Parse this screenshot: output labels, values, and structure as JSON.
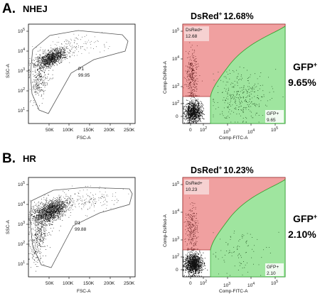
{
  "panels": [
    {
      "letter": "A.",
      "name": "NHEJ",
      "scatter": {
        "ylabel": "SSC-A",
        "xlabel": "FSC-A",
        "x_ticks": [
          "50K",
          "100K",
          "150K",
          "200K",
          "250K"
        ],
        "y_ticks": [
          {
            "base": "10",
            "exp": "1"
          },
          {
            "base": "10",
            "exp": "2"
          },
          {
            "base": "10",
            "exp": "3"
          },
          {
            "base": "10",
            "exp": "4"
          },
          {
            "base": "10",
            "exp": "5"
          }
        ],
        "gate_name": "P1",
        "gate_pct": "99.95"
      },
      "quadrant": {
        "title": "DsRed",
        "title_sup": "+",
        "title_pct": "12.68%",
        "ylabel": "Comp-DsRed-A",
        "xlabel": "Comp-FITC-A",
        "x_ticks": [
          {
            "base": "0",
            "exp": ""
          },
          {
            "base": "10",
            "exp": "2"
          },
          {
            "base": "10",
            "exp": "3"
          },
          {
            "base": "10",
            "exp": "4"
          },
          {
            "base": "10",
            "exp": "5"
          }
        ],
        "y_ticks": [
          {
            "base": "0",
            "exp": ""
          },
          {
            "base": "10",
            "exp": "2"
          },
          {
            "base": "10",
            "exp": "3"
          },
          {
            "base": "10",
            "exp": "4"
          },
          {
            "base": "10",
            "exp": "5"
          }
        ],
        "dsred_label": "DsRed+",
        "dsred_pct": "12.68",
        "gfp_label": "GFP+",
        "gfp_pct": "9.65",
        "side_label": "GFP",
        "side_sup": "+",
        "side_pct": "9.65%"
      }
    },
    {
      "letter": "B.",
      "name": "HR",
      "scatter": {
        "ylabel": "SSC-A",
        "xlabel": "FSC-A",
        "x_ticks": [
          "50K",
          "100K",
          "150K",
          "200K",
          "250K"
        ],
        "y_ticks": [
          {
            "base": "10",
            "exp": "1"
          },
          {
            "base": "10",
            "exp": "2"
          },
          {
            "base": "10",
            "exp": "3"
          },
          {
            "base": "10",
            "exp": "4"
          },
          {
            "base": "10",
            "exp": "5"
          }
        ],
        "gate_name": "P1",
        "gate_pct": "99.88"
      },
      "quadrant": {
        "title": "DsRed",
        "title_sup": "+",
        "title_pct": "10.23%",
        "ylabel": "Comp-DsRed-A",
        "xlabel": "Comp-FITC-A",
        "x_ticks": [
          {
            "base": "0",
            "exp": ""
          },
          {
            "base": "10",
            "exp": "2"
          },
          {
            "base": "10",
            "exp": "3"
          },
          {
            "base": "10",
            "exp": "4"
          },
          {
            "base": "10",
            "exp": "5"
          }
        ],
        "y_ticks": [
          {
            "base": "0",
            "exp": ""
          },
          {
            "base": "10",
            "exp": "2"
          },
          {
            "base": "10",
            "exp": "3"
          },
          {
            "base": "10",
            "exp": "4"
          },
          {
            "base": "10",
            "exp": "5"
          }
        ],
        "dsred_label": "DsRed+",
        "dsred_pct": "10.23",
        "gfp_label": "GFP+",
        "gfp_pct": "2.10",
        "side_label": "GFP",
        "side_sup": "+",
        "side_pct": "2.10%"
      }
    }
  ],
  "colors": {
    "red_gate": "#f0a0a0",
    "green_gate": "#9fe59f",
    "gate_line": "#555555",
    "dots": "#111111",
    "red_dots": "#551010",
    "green_dots": "#0d3a0d"
  },
  "chart_data": [
    {
      "type": "scatter",
      "panel": "A",
      "xlabel": "FSC-A",
      "ylabel": "SSC-A",
      "xlim": [
        0,
        262144
      ],
      "ylim_log10": [
        0.7,
        5.4
      ],
      "y_scale": "log",
      "gates": [
        {
          "name": "P1",
          "percent": 99.95
        }
      ]
    },
    {
      "type": "scatter",
      "panel": "A",
      "xlabel": "Comp-FITC-A",
      "ylabel": "Comp-DsRed-A",
      "x_scale": "biexponential",
      "y_scale": "biexponential",
      "gates": [
        {
          "name": "DsRed+",
          "percent": 12.68
        },
        {
          "name": "GFP+",
          "percent": 9.65
        }
      ]
    },
    {
      "type": "scatter",
      "panel": "B",
      "xlabel": "FSC-A",
      "ylabel": "SSC-A",
      "xlim": [
        0,
        262144
      ],
      "ylim_log10": [
        0.7,
        5.4
      ],
      "y_scale": "log",
      "gates": [
        {
          "name": "P1",
          "percent": 99.88
        }
      ]
    },
    {
      "type": "scatter",
      "panel": "B",
      "xlabel": "Comp-FITC-A",
      "ylabel": "Comp-DsRed-A",
      "x_scale": "biexponential",
      "y_scale": "biexponential",
      "gates": [
        {
          "name": "DsRed+",
          "percent": 10.23
        },
        {
          "name": "GFP+",
          "percent": 2.1
        }
      ]
    }
  ]
}
